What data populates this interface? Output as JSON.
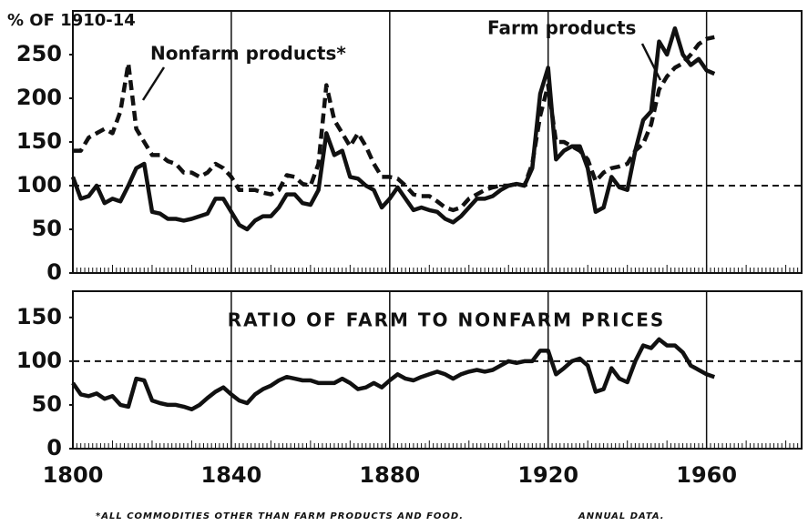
{
  "chart_data": [
    {
      "type": "line",
      "y_label": "% OF 1910-14",
      "x": [
        1800,
        1802,
        1804,
        1806,
        1808,
        1810,
        1812,
        1814,
        1816,
        1818,
        1820,
        1822,
        1824,
        1826,
        1828,
        1830,
        1832,
        1834,
        1836,
        1838,
        1840,
        1842,
        1844,
        1846,
        1848,
        1850,
        1852,
        1854,
        1856,
        1858,
        1860,
        1862,
        1864,
        1866,
        1868,
        1870,
        1872,
        1874,
        1876,
        1878,
        1880,
        1882,
        1884,
        1886,
        1888,
        1890,
        1892,
        1894,
        1896,
        1898,
        1900,
        1902,
        1904,
        1906,
        1908,
        1910,
        1912,
        1914,
        1916,
        1918,
        1920,
        1922,
        1924,
        1926,
        1928,
        1930,
        1932,
        1934,
        1936,
        1938,
        1940,
        1942,
        1944,
        1946,
        1948,
        1950,
        1952,
        1954,
        1956,
        1958,
        1960,
        1962
      ],
      "series": [
        {
          "name": "Farm products",
          "color": "#111111",
          "dashed": false,
          "values": [
            110,
            85,
            88,
            100,
            80,
            85,
            82,
            100,
            120,
            125,
            70,
            68,
            62,
            62,
            60,
            62,
            65,
            68,
            85,
            85,
            70,
            55,
            50,
            60,
            65,
            65,
            75,
            90,
            90,
            80,
            78,
            95,
            160,
            135,
            140,
            110,
            108,
            100,
            95,
            75,
            85,
            98,
            85,
            72,
            75,
            72,
            70,
            62,
            58,
            65,
            75,
            85,
            85,
            88,
            95,
            100,
            102,
            100,
            120,
            205,
            235,
            130,
            140,
            145,
            145,
            120,
            70,
            75,
            110,
            98,
            95,
            140,
            175,
            185,
            265,
            250,
            280,
            250,
            238,
            245,
            232,
            228
          ]
        },
        {
          "name": "Nonfarm products*",
          "color": "#111111",
          "dashed": true,
          "values": [
            140,
            140,
            155,
            160,
            165,
            160,
            185,
            240,
            165,
            150,
            135,
            135,
            128,
            125,
            115,
            115,
            110,
            115,
            125,
            120,
            110,
            95,
            95,
            95,
            92,
            90,
            95,
            112,
            110,
            102,
            100,
            125,
            215,
            175,
            160,
            145,
            160,
            145,
            125,
            110,
            110,
            108,
            100,
            90,
            88,
            88,
            82,
            75,
            72,
            75,
            85,
            90,
            95,
            98,
            100,
            100,
            102,
            100,
            125,
            180,
            215,
            150,
            150,
            145,
            140,
            130,
            105,
            115,
            120,
            122,
            125,
            140,
            148,
            170,
            210,
            225,
            235,
            240,
            250,
            262,
            268,
            270
          ]
        }
      ],
      "xlim": [
        1800,
        1984
      ],
      "ylim": [
        0,
        300
      ],
      "yticks": [
        0,
        50,
        100,
        150,
        200,
        250
      ],
      "reference_line": 100
    },
    {
      "type": "line",
      "title": "RATIO OF FARM TO NONFARM PRICES",
      "x": [
        1800,
        1802,
        1804,
        1806,
        1808,
        1810,
        1812,
        1814,
        1816,
        1818,
        1820,
        1822,
        1824,
        1826,
        1828,
        1830,
        1832,
        1834,
        1836,
        1838,
        1840,
        1842,
        1844,
        1846,
        1848,
        1850,
        1852,
        1854,
        1856,
        1858,
        1860,
        1862,
        1864,
        1866,
        1868,
        1870,
        1872,
        1874,
        1876,
        1878,
        1880,
        1882,
        1884,
        1886,
        1888,
        1890,
        1892,
        1894,
        1896,
        1898,
        1900,
        1902,
        1904,
        1906,
        1908,
        1910,
        1912,
        1914,
        1916,
        1918,
        1920,
        1922,
        1924,
        1926,
        1928,
        1930,
        1932,
        1934,
        1936,
        1938,
        1940,
        1942,
        1944,
        1946,
        1948,
        1950,
        1952,
        1954,
        1956,
        1958,
        1960,
        1962
      ],
      "values": [
        75,
        62,
        60,
        63,
        57,
        60,
        50,
        48,
        80,
        78,
        55,
        52,
        50,
        50,
        48,
        45,
        50,
        58,
        65,
        70,
        62,
        55,
        52,
        62,
        68,
        72,
        78,
        82,
        80,
        78,
        78,
        75,
        75,
        75,
        80,
        75,
        68,
        70,
        75,
        70,
        78,
        85,
        80,
        78,
        82,
        85,
        88,
        85,
        80,
        85,
        88,
        90,
        88,
        90,
        95,
        100,
        98,
        100,
        100,
        112,
        112,
        85,
        92,
        100,
        103,
        95,
        65,
        68,
        92,
        80,
        76,
        100,
        118,
        115,
        125,
        118,
        118,
        110,
        95,
        90,
        85,
        82
      ],
      "color": "#111111",
      "xlim": [
        1800,
        1984
      ],
      "ylim": [
        0,
        180
      ],
      "yticks": [
        0,
        50,
        100,
        150
      ],
      "xticks": [
        1800,
        1840,
        1880,
        1920,
        1960
      ],
      "reference_line": 100
    }
  ],
  "footnotes": [
    "*ALL COMMODITIES OTHER THAN FARM PRODUCTS AND FOOD.",
    "ANNUAL DATA."
  ]
}
